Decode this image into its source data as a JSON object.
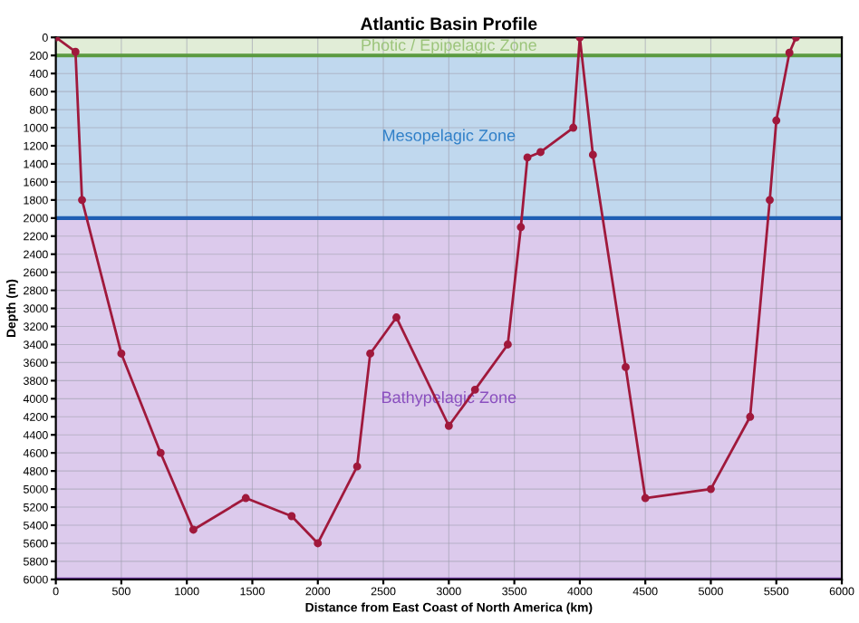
{
  "chart_data": {
    "type": "line",
    "title": "Atlantic Basin Profile",
    "xlabel": "Distance from East Coast of North America (km)",
    "ylabel": "Depth (m)",
    "x": [
      0,
      150,
      200,
      500,
      800,
      1050,
      1450,
      1800,
      2000,
      2300,
      2400,
      2600,
      3000,
      3200,
      3450,
      3550,
      3600,
      3700,
      3950,
      4000,
      4100,
      4350,
      4500,
      5000,
      5300,
      5450,
      5500,
      5600,
      5650
    ],
    "series": [
      {
        "color": "#a0193c",
        "values": [
          0,
          160,
          1800,
          3500,
          4600,
          5450,
          5100,
          5300,
          5600,
          4750,
          3500,
          3100,
          4300,
          3900,
          3400,
          2100,
          1330,
          1270,
          1000,
          0,
          1300,
          3650,
          5100,
          5000,
          4200,
          1800,
          920,
          170,
          0
        ]
      }
    ],
    "marker": "circle",
    "line_style": "solid",
    "xlim": [
      0,
      6000
    ],
    "xticks": [
      0,
      500,
      1000,
      1500,
      2000,
      2500,
      3000,
      3500,
      4000,
      4500,
      5000,
      5500,
      6000
    ],
    "ylim": [
      6000,
      0
    ],
    "yticks": [
      0,
      200,
      400,
      600,
      800,
      1000,
      1200,
      1400,
      1600,
      1800,
      2000,
      2200,
      2400,
      2600,
      2800,
      3000,
      3200,
      3400,
      3600,
      3800,
      4000,
      4200,
      4400,
      4600,
      4800,
      5000,
      5200,
      5400,
      5600,
      5800,
      6000
    ],
    "grid": true,
    "bands": [
      {
        "axis": "y",
        "from": 0,
        "to": 200,
        "label": "Photic / Epipelagic Zone",
        "color": "#9bc47a"
      },
      {
        "axis": "y",
        "from": 200,
        "to": 2000,
        "label": "Mesopelagic Zone",
        "color": "#2f7fc8"
      },
      {
        "axis": "y",
        "from": 2000,
        "to": 6000,
        "label": "Bathypelagic Zone",
        "color": "#8a4fbf"
      }
    ],
    "ref_lines": [
      {
        "axis": "y",
        "value": 200,
        "color": "#5a9a40"
      },
      {
        "axis": "y",
        "value": 2000,
        "color": "#1f5fb4"
      },
      {
        "axis": "y",
        "value": 6000,
        "color": "#7a3fb0"
      }
    ]
  }
}
